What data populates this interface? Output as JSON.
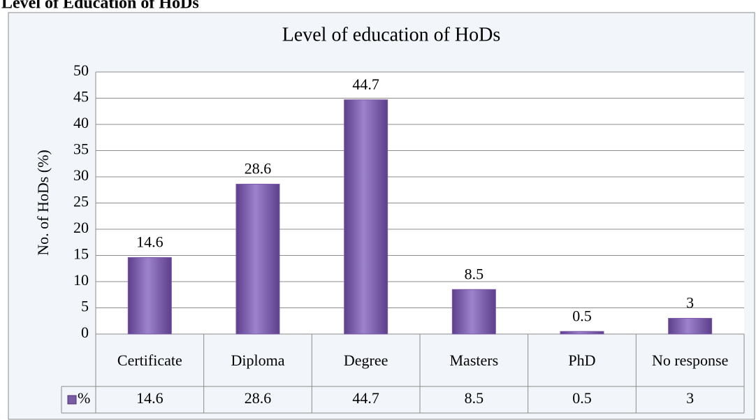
{
  "heading": "Level of Education of HoDs",
  "chart_data": {
    "type": "bar",
    "title": "Level of education of HoDs",
    "y_label": "No. of HoDs (%)",
    "categories": [
      "Certificate",
      "Diploma",
      "Degree",
      "Masters",
      "PhD",
      "No response"
    ],
    "series": [
      {
        "name": "%",
        "color": "#7b5aa6",
        "values": [
          14.6,
          28.6,
          44.7,
          8.5,
          0.5,
          3
        ]
      }
    ],
    "ylim": [
      0,
      50
    ],
    "yticks": [
      0,
      5,
      10,
      15,
      20,
      25,
      30,
      35,
      40,
      45,
      50
    ],
    "grid": true,
    "data_table": true
  }
}
